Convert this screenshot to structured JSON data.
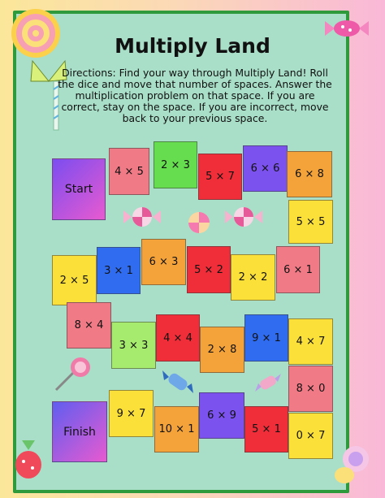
{
  "title": "Multiply Land",
  "directions": "Directions: Find your way through Multiply Land! Roll the dice and move that number of spaces. Answer the multiplication problem on that space. If you are correct, stay on the space. If you are incorrect, move back to your previous space.",
  "spaces": [
    {
      "label": "Start",
      "color": "#7b4df0"
    },
    {
      "label": "4 × 5",
      "color": "#f07a86"
    },
    {
      "label": "2 × 3",
      "color": "#66dd4e"
    },
    {
      "label": "5 × 7",
      "color": "#ef2e3a"
    },
    {
      "label": "6 × 6",
      "color": "#7b52ee"
    },
    {
      "label": "6 × 8",
      "color": "#f4a33b"
    },
    {
      "label": "5 × 5",
      "color": "#fbe03a"
    },
    {
      "label": "2 × 5",
      "color": "#fbe03a"
    },
    {
      "label": "3 × 1",
      "color": "#2f6cf0"
    },
    {
      "label": "6 × 3",
      "color": "#f4a33b"
    },
    {
      "label": "5 × 2",
      "color": "#ef2e3a"
    },
    {
      "label": "2 × 2",
      "color": "#fbe03a"
    },
    {
      "label": "6 × 1",
      "color": "#f07a86"
    },
    {
      "label": "8 × 4",
      "color": "#f07a86"
    },
    {
      "label": "3 × 3",
      "color": "#a6ea6e"
    },
    {
      "label": "4 × 4",
      "color": "#ef2e3a"
    },
    {
      "label": "2 × 8",
      "color": "#f4a33b"
    },
    {
      "label": "9 × 1",
      "color": "#2f6cf0"
    },
    {
      "label": "4 × 7",
      "color": "#fbe03a"
    },
    {
      "label": "8 × 0",
      "color": "#f07a86"
    },
    {
      "label": "Finish",
      "color": "#7b52ee"
    },
    {
      "label": "9 × 7",
      "color": "#fbe03a"
    },
    {
      "label": "10 × 1",
      "color": "#f4a33b"
    },
    {
      "label": "6 × 9",
      "color": "#7b52ee"
    },
    {
      "label": "5 × 1",
      "color": "#ef2e3a"
    },
    {
      "label": "0 × 7",
      "color": "#fbe03a"
    }
  ]
}
